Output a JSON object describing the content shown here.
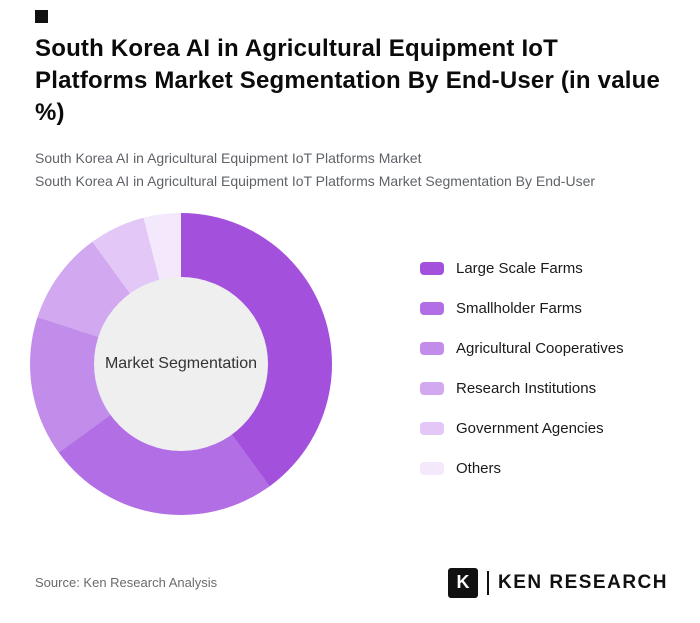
{
  "header": {
    "title": "South Korea AI in Agricultural Equipment IoT Platforms Market Segmentation By End-User (in value %)",
    "subtitle_line1": "South Korea AI in Agricultural Equipment IoT Platforms Market",
    "subtitle_line2": "South Korea AI in Agricultural Equipment IoT Platforms Market Segmentation By End-User"
  },
  "chart_data": {
    "type": "pie",
    "donut": true,
    "title": "South Korea AI in Agricultural Equipment IoT Platforms Market Segmentation By End-User (in value %)",
    "center_label": "Market Segmentation",
    "categories": [
      "Large Scale Farms",
      "Smallholder Farms",
      "Agricultural Cooperatives",
      "Research Institutions",
      "Government Agencies",
      "Others"
    ],
    "values": [
      40,
      25,
      15,
      10,
      6,
      4
    ],
    "colors": [
      "#a351dd",
      "#b26ee5",
      "#c28ceb",
      "#d2a9f1",
      "#e3c7f7",
      "#f3e8fc"
    ],
    "hole_color": "#efefef",
    "legend_position": "right",
    "start_angle_deg": 0,
    "direction": "clockwise"
  },
  "footer": {
    "source": "Source: Ken Research Analysis",
    "brand_mark": "K",
    "brand_text": "KEN RESEARCH"
  }
}
